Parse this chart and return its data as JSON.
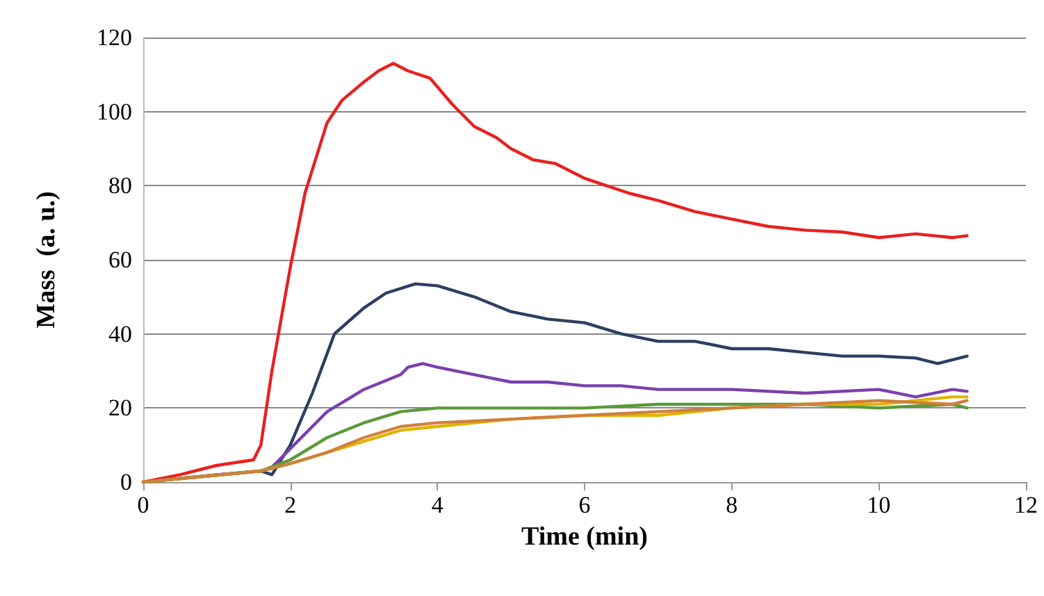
{
  "chart_data": {
    "type": "line",
    "xlabel": "Time (min)",
    "ylabel": "Mass  (a. u.)",
    "xlim": [
      0,
      12
    ],
    "xticks": [
      0,
      2,
      4,
      6,
      8,
      10,
      12
    ],
    "ylim": [
      0,
      120
    ],
    "yticks": [
      0,
      20,
      40,
      60,
      80,
      100,
      120
    ],
    "grid": "y",
    "marker": "none",
    "line_style": "solid",
    "series": [
      {
        "color": "#e8201e",
        "x": [
          0,
          0.5,
          1,
          1.5,
          1.6,
          1.75,
          2,
          2.2,
          2.5,
          2.7,
          3,
          3.2,
          3.4,
          3.6,
          3.9,
          4.2,
          4.5,
          4.8,
          5,
          5.3,
          5.6,
          6,
          6.3,
          6.6,
          7,
          7.5,
          8,
          8.5,
          9,
          9.5,
          10,
          10.5,
          11,
          11.2
        ],
        "values": [
          0,
          2,
          4.5,
          6,
          10,
          30,
          58,
          78,
          97,
          103,
          108,
          111,
          113,
          111,
          109,
          102,
          96,
          93,
          90,
          87,
          86,
          82,
          80,
          78,
          76,
          73,
          71,
          69,
          68,
          67.5,
          66,
          67,
          66,
          66.5
        ]
      },
      {
        "color": "#2b3f63",
        "x": [
          0,
          1,
          1.6,
          1.75,
          2,
          2.3,
          2.6,
          3,
          3.3,
          3.7,
          4,
          4.5,
          5,
          5.5,
          6,
          6.5,
          7,
          7.5,
          8,
          8.5,
          9,
          9.5,
          10,
          10.5,
          10.8,
          11.2
        ],
        "values": [
          0,
          2,
          3,
          2,
          10,
          24,
          40,
          47,
          51,
          53.5,
          53,
          50,
          46,
          44,
          43,
          40,
          38,
          38,
          36,
          36,
          35,
          34,
          34,
          33.5,
          32,
          34
        ]
      },
      {
        "color": "#7a3fb0",
        "x": [
          0,
          1.6,
          1.75,
          2,
          2.5,
          3,
          3.5,
          3.6,
          3.8,
          4,
          4.5,
          5,
          5.5,
          6,
          6.5,
          7,
          8,
          9,
          10,
          10.5,
          11,
          11.2
        ],
        "values": [
          0,
          3,
          4,
          9,
          19,
          25,
          29,
          31,
          32,
          31,
          29,
          27,
          27,
          26,
          26,
          25,
          25,
          24,
          25,
          23,
          25,
          24.5
        ]
      },
      {
        "color": "#5a9a3a",
        "x": [
          0,
          1.6,
          2,
          2.5,
          3,
          3.5,
          4,
          4.5,
          5,
          5.5,
          6,
          7,
          8,
          9,
          10,
          11,
          11.2
        ],
        "values": [
          0,
          3,
          6,
          12,
          16,
          19,
          20,
          20,
          20,
          20,
          20,
          21,
          21,
          21,
          20,
          21,
          20
        ]
      },
      {
        "color": "#e0b400",
        "x": [
          0,
          1.6,
          2,
          2.5,
          3,
          3.5,
          4,
          5,
          6,
          7,
          8,
          9,
          10,
          11,
          11.2
        ],
        "values": [
          0,
          3,
          5,
          8,
          11,
          14,
          15,
          17,
          18,
          18,
          20,
          21,
          21,
          23,
          23
        ]
      },
      {
        "color": "#d0803c",
        "x": [
          0,
          1.6,
          2,
          2.5,
          3,
          3.5,
          4,
          5,
          6,
          7,
          8,
          9,
          10,
          11,
          11.2
        ],
        "values": [
          0,
          3,
          5,
          8,
          12,
          15,
          16,
          17,
          18,
          19,
          20,
          21,
          22,
          21,
          22
        ]
      }
    ]
  }
}
